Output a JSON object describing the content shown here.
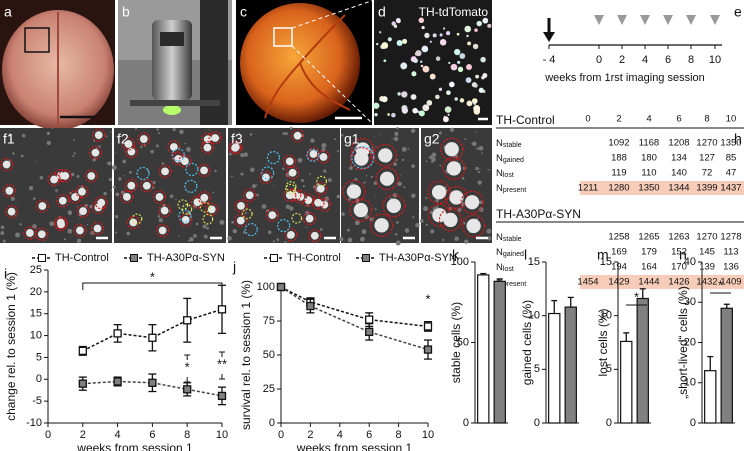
{
  "panel_labels": [
    "a",
    "b",
    "c",
    "d",
    "e",
    "f1",
    "f2",
    "f3",
    "g1",
    "g2",
    "h"
  ],
  "image_d_caption": "TH-tdTomato",
  "timeline": {
    "ticks": [
      "- 4",
      "0",
      "2",
      "4",
      "6",
      "8",
      "10"
    ],
    "caption": "weeks from 1rst imaging session"
  },
  "tables": [
    {
      "title": "TH-Control",
      "columns": [
        0,
        2,
        4,
        6,
        8,
        10
      ],
      "rows": [
        {
          "label": "N",
          "sub": "stable",
          "cells": [
            null,
            1092,
            1168,
            1208,
            1270,
            1350
          ]
        },
        {
          "label": "N",
          "sub": "gained",
          "cells": [
            null,
            188,
            180,
            134,
            127,
            85
          ]
        },
        {
          "label": "N",
          "sub": "lost",
          "cells": [
            null,
            119,
            110,
            140,
            72,
            47
          ]
        },
        {
          "label": "N",
          "sub": "present",
          "cells": [
            1211,
            1280,
            1350,
            1344,
            1399,
            1437
          ]
        }
      ]
    },
    {
      "title": "TH-A30Pα-SYN",
      "rows": [
        {
          "label": "N",
          "sub": "stable",
          "cells": [
            null,
            1258,
            1265,
            1263,
            1270,
            1278
          ]
        },
        {
          "label": "N",
          "sub": "gained",
          "cells": [
            null,
            169,
            179,
            152,
            145,
            113
          ]
        },
        {
          "label": "N",
          "sub": "lost",
          "cells": [
            null,
            194,
            164,
            170,
            139,
            136
          ]
        },
        {
          "label": "N",
          "sub": "present",
          "cells": [
            1454,
            1429,
            1444,
            1426,
            1432,
            1409
          ]
        }
      ]
    }
  ],
  "chart_data": [
    {
      "type": "line",
      "label": "i",
      "xlabel": "weeks from session 1",
      "ylabel": "change rel. to session 1 (%)",
      "x": [
        2,
        4,
        6,
        8,
        10
      ],
      "xlim": [
        0,
        10
      ],
      "xticks": [
        0,
        2,
        4,
        6,
        8,
        10
      ],
      "ylim": [
        -10,
        25
      ],
      "yticks": [
        -10,
        -5,
        0,
        5,
        10,
        15,
        20,
        25
      ],
      "series": [
        {
          "name": "TH-Control",
          "color": "#ffffff",
          "values": [
            6.5,
            10.5,
            9.5,
            13.5,
            16
          ],
          "errors": [
            1,
            2,
            3,
            5,
            5.5
          ]
        },
        {
          "name": "TH-A30Pα-SYN",
          "color": "#808080",
          "values": [
            -1,
            -0.5,
            -0.8,
            -2.3,
            -3.8
          ],
          "errors": [
            1.5,
            1,
            2,
            1.5,
            2
          ]
        }
      ],
      "annotations": [
        "*",
        "*",
        "**"
      ]
    },
    {
      "type": "line",
      "label": "j",
      "xlabel": "weeks from session 1",
      "ylabel": "survival rel. to session 1 (%)",
      "x": [
        0,
        2,
        6,
        10
      ],
      "xlim": [
        0,
        10
      ],
      "xticks": [
        0,
        2,
        4,
        6,
        8,
        10
      ],
      "ylim": [
        0,
        100
      ],
      "yticks": [
        0,
        25,
        50,
        75,
        100
      ],
      "series": [
        {
          "name": "TH-Control",
          "color": "#ffffff",
          "values": [
            100,
            89,
            76,
            71
          ],
          "errors": [
            0,
            3,
            5,
            3.5
          ]
        },
        {
          "name": "TH-A30Pα-SYN",
          "color": "#808080",
          "values": [
            100,
            86,
            67,
            54
          ],
          "errors": [
            0,
            5,
            6,
            7
          ]
        }
      ],
      "annotations": [
        "*"
      ]
    },
    {
      "type": "bar",
      "label": "k",
      "ylabel": "stable cells (%)",
      "categories": [
        null,
        null
      ],
      "values": [
        92,
        88
      ],
      "errors": [
        0.8,
        1.5
      ],
      "colors": [
        "#ffffff",
        "#808080"
      ],
      "ylim": [
        0,
        100
      ],
      "yticks": [
        0,
        50,
        100
      ]
    },
    {
      "type": "bar",
      "label": "l",
      "ylabel": "gained cells (%)",
      "categories": [
        null,
        null
      ],
      "values": [
        10.2,
        10.8
      ],
      "errors": [
        1.2,
        0.9
      ],
      "colors": [
        "#ffffff",
        "#808080"
      ],
      "ylim": [
        0,
        15
      ],
      "yticks": [
        0,
        5,
        10,
        15
      ]
    },
    {
      "type": "bar",
      "label": "m",
      "ylabel": "lost cells (%)",
      "categories": [
        null,
        null
      ],
      "values": [
        7.6,
        11.6
      ],
      "errors": [
        0.8,
        0.9
      ],
      "colors": [
        "#ffffff",
        "#808080"
      ],
      "ylim": [
        0,
        15
      ],
      "yticks": [
        0,
        5,
        10,
        15
      ],
      "annotations": [
        "*"
      ]
    },
    {
      "type": "bar",
      "label": "n",
      "ylabel": "„short-lived“ cells (%)",
      "categories": [
        null,
        null
      ],
      "values": [
        13,
        28.5
      ],
      "errors": [
        3.5,
        1
      ],
      "colors": [
        "#ffffff",
        "#808080"
      ],
      "ylim": [
        0,
        40
      ],
      "yticks": [
        0,
        10,
        20,
        30,
        40
      ],
      "annotations": [
        "*"
      ]
    }
  ]
}
